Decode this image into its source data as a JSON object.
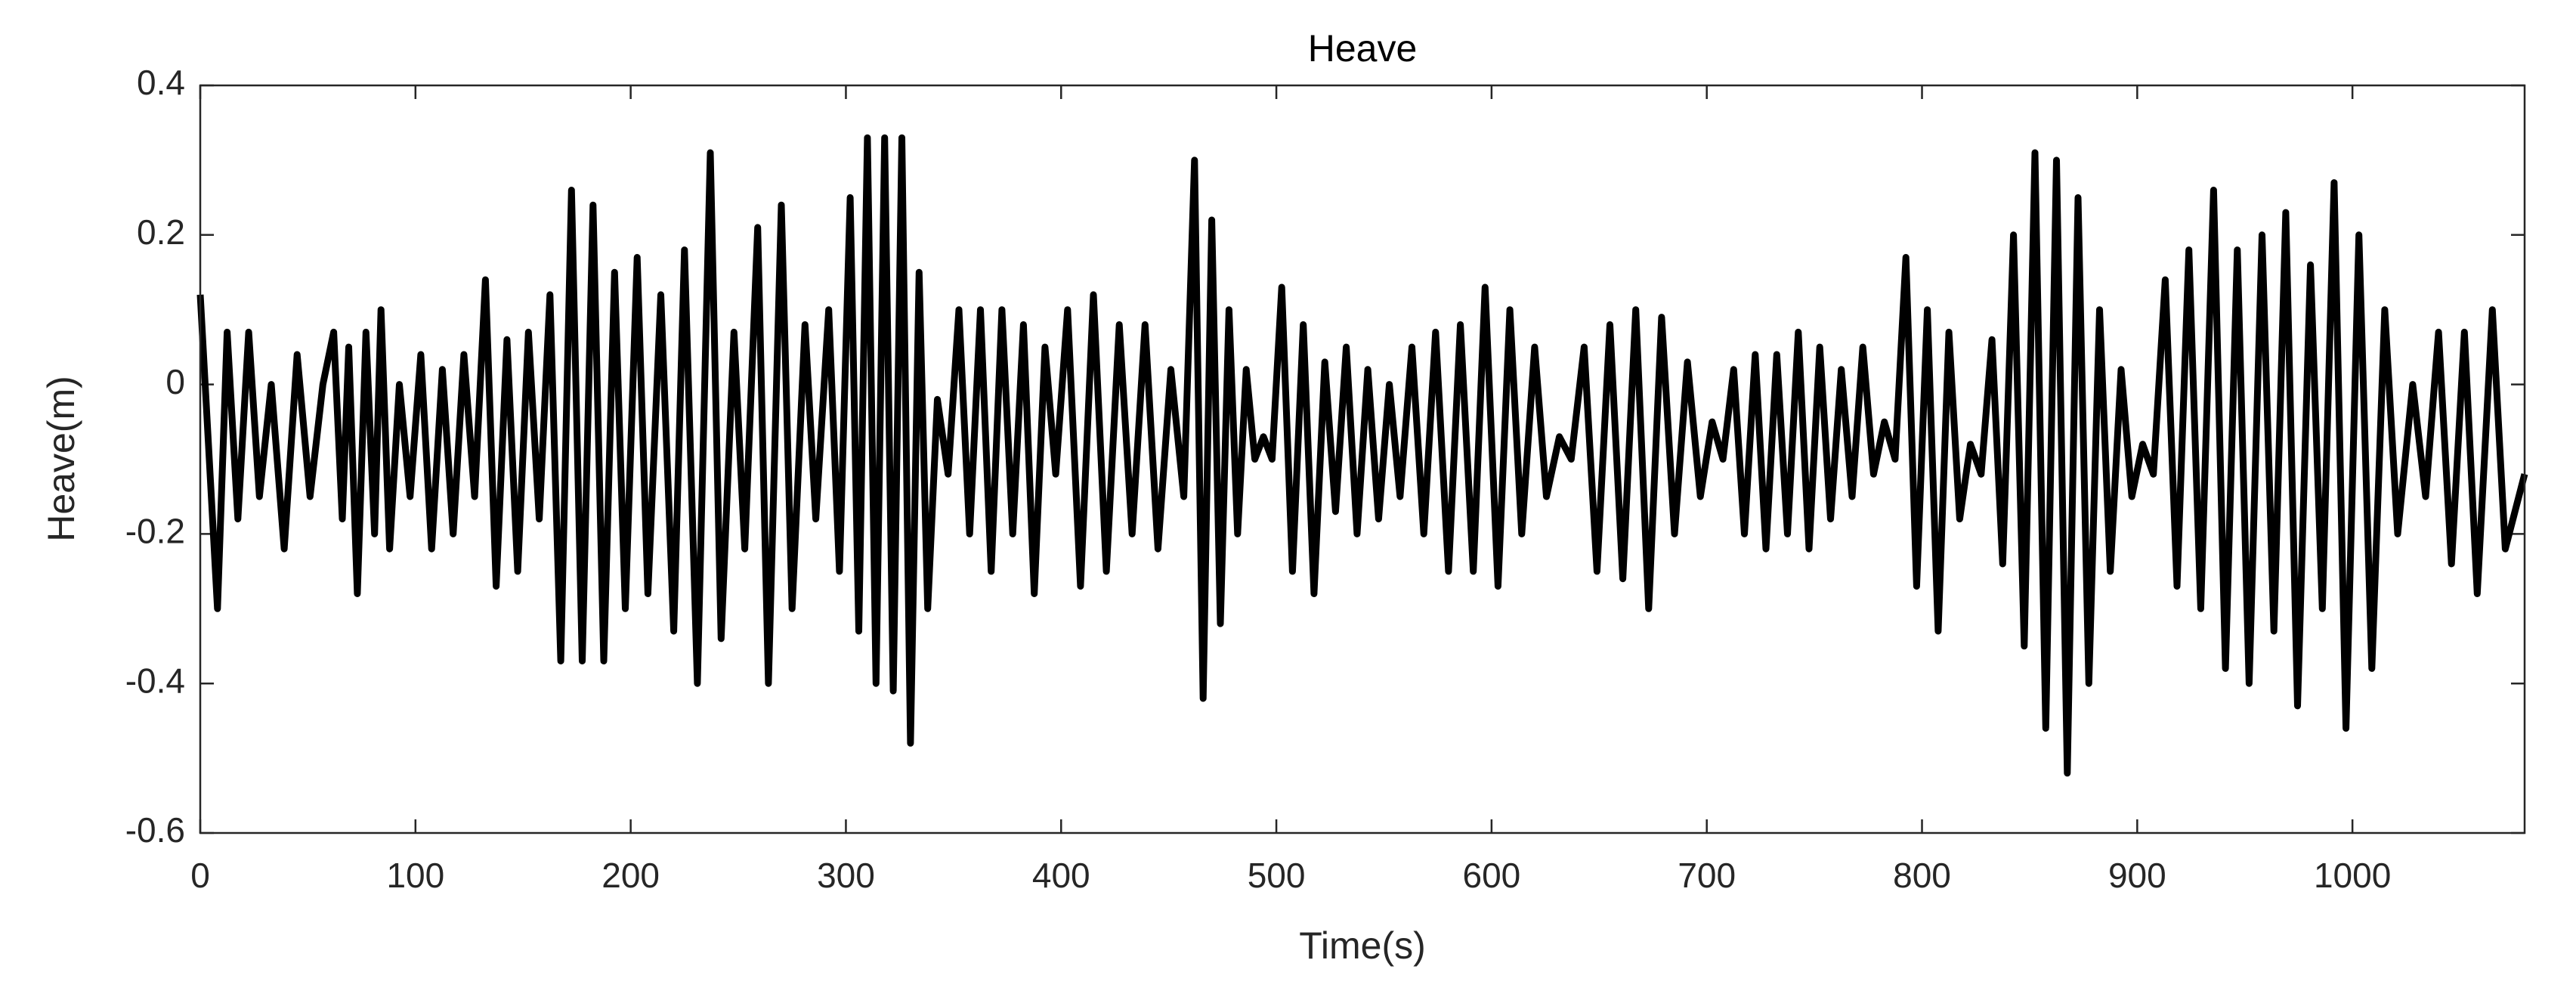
{
  "chart_data": {
    "type": "line",
    "title": "Heave",
    "xlabel": "Time(s)",
    "ylabel": "Heave(m)",
    "color": "#000000",
    "x": [
      0,
      8,
      12.5,
      17.5,
      22.5,
      27.5,
      33,
      39,
      45,
      51,
      57,
      62,
      66,
      69,
      73,
      77,
      81,
      84,
      88,
      92.5,
      97.5,
      102.5,
      107.5,
      112.5,
      117.5,
      122.5,
      127.5,
      132.5,
      137.5,
      142.5,
      147.5,
      152.5,
      157.5,
      162.5,
      167.5,
      172.5,
      177.5,
      182.5,
      187.5,
      192.5,
      197.5,
      203,
      208,
      214,
      220,
      225,
      231,
      237,
      242,
      248,
      253,
      259,
      264,
      270,
      275,
      281,
      286,
      292,
      297,
      302,
      306,
      310,
      314,
      318,
      322,
      326,
      330,
      334,
      338,
      342.5,
      347.5,
      352.5,
      357.5,
      362.5,
      367.5,
      372.5,
      377.5,
      382.5,
      387.5,
      392.5,
      397.5,
      403,
      409,
      415,
      421,
      427,
      433,
      439,
      445,
      451,
      457,
      462,
      466,
      470,
      474,
      478,
      482,
      486,
      490,
      494,
      498,
      502.5,
      507.5,
      512.5,
      517.5,
      522.5,
      527.5,
      532.5,
      537.5,
      542.5,
      547.5,
      552.5,
      557.5,
      563,
      568.5,
      574,
      580,
      585.5,
      591.5,
      597,
      603,
      608.5,
      614,
      620,
      625.5,
      631.5,
      637,
      643,
      649,
      655,
      661,
      667,
      673,
      679,
      685,
      691,
      697,
      702.5,
      707.5,
      712.5,
      717.5,
      722.5,
      727.5,
      732.5,
      737.5,
      742.5,
      747.5,
      752.5,
      757.5,
      762.5,
      767.5,
      772.5,
      777.5,
      782.5,
      787.5,
      792.5,
      797.5,
      802.5,
      807.5,
      812.5,
      817.5,
      822.5,
      827.5,
      832.5,
      837.5,
      842.5,
      847.5,
      852.5,
      857.5,
      862.5,
      867.5,
      872.5,
      877.5,
      882.5,
      887.5,
      892.5,
      897.5,
      902.5,
      907.5,
      913,
      918.5,
      924,
      929.5,
      935.5,
      941,
      946.5,
      952,
      958,
      963.5,
      969,
      974.5,
      980.5,
      986,
      991.5,
      997,
      1003,
      1009,
      1015,
      1021,
      1028,
      1034,
      1040,
      1046,
      1052,
      1058,
      1065,
      1071,
      1080
    ],
    "values": [
      0.12,
      -0.3,
      0.07,
      -0.18,
      0.07,
      -0.15,
      0.0,
      -0.22,
      0.04,
      -0.15,
      0.0,
      0.07,
      -0.18,
      0.05,
      -0.28,
      0.07,
      -0.2,
      0.1,
      -0.22,
      0.0,
      -0.15,
      0.04,
      -0.22,
      0.02,
      -0.2,
      0.04,
      -0.15,
      0.14,
      -0.27,
      0.06,
      -0.25,
      0.07,
      -0.18,
      0.12,
      -0.37,
      0.26,
      -0.37,
      0.24,
      -0.37,
      0.15,
      -0.3,
      0.17,
      -0.28,
      0.12,
      -0.33,
      0.18,
      -0.4,
      0.31,
      -0.34,
      0.07,
      -0.22,
      0.21,
      -0.4,
      0.24,
      -0.3,
      0.08,
      -0.18,
      0.1,
      -0.25,
      0.25,
      -0.33,
      0.33,
      -0.4,
      0.33,
      -0.41,
      0.33,
      -0.48,
      0.15,
      -0.3,
      -0.02,
      -0.12,
      0.1,
      -0.2,
      0.1,
      -0.25,
      0.1,
      -0.2,
      0.08,
      -0.28,
      0.05,
      -0.12,
      0.1,
      -0.27,
      0.12,
      -0.25,
      0.08,
      -0.2,
      0.08,
      -0.22,
      0.02,
      -0.15,
      0.3,
      -0.42,
      0.22,
      -0.32,
      0.1,
      -0.2,
      0.02,
      -0.1,
      -0.07,
      -0.1,
      0.13,
      -0.25,
      0.08,
      -0.28,
      0.03,
      -0.17,
      0.05,
      -0.2,
      0.02,
      -0.18,
      0.0,
      -0.15,
      0.05,
      -0.2,
      0.07,
      -0.25,
      0.08,
      -0.25,
      0.13,
      -0.27,
      0.1,
      -0.2,
      0.05,
      -0.15,
      -0.07,
      -0.1,
      0.05,
      -0.25,
      0.08,
      -0.26,
      0.1,
      -0.3,
      0.09,
      -0.2,
      0.03,
      -0.15,
      -0.05,
      -0.1,
      0.02,
      -0.2,
      0.04,
      -0.22,
      0.04,
      -0.2,
      0.07,
      -0.22,
      0.05,
      -0.18,
      0.02,
      -0.15,
      0.05,
      -0.12,
      -0.05,
      -0.1,
      0.17,
      -0.27,
      0.1,
      -0.33,
      0.07,
      -0.18,
      -0.08,
      -0.12,
      0.06,
      -0.24,
      0.2,
      -0.35,
      0.31,
      -0.46,
      0.3,
      -0.52,
      0.25,
      -0.4,
      0.1,
      -0.25,
      0.02,
      -0.15,
      -0.08,
      -0.12,
      0.14,
      -0.27,
      0.18,
      -0.3,
      0.26,
      -0.38,
      0.18,
      -0.4,
      0.2,
      -0.33,
      0.23,
      -0.43,
      0.16,
      -0.3,
      0.27,
      -0.46,
      0.2,
      -0.38,
      0.1,
      -0.2,
      0.0,
      -0.15,
      0.07,
      -0.24,
      0.07,
      -0.28,
      0.1,
      -0.22,
      -0.12
    ],
    "xlim": [
      0,
      1080
    ],
    "xticks": [
      0,
      100,
      200,
      300,
      400,
      500,
      600,
      700,
      800,
      900,
      1000
    ],
    "ylim": [
      -0.6,
      0.4
    ],
    "yticks": [
      -0.6,
      -0.4,
      -0.2,
      0,
      0.2,
      0.4
    ]
  }
}
